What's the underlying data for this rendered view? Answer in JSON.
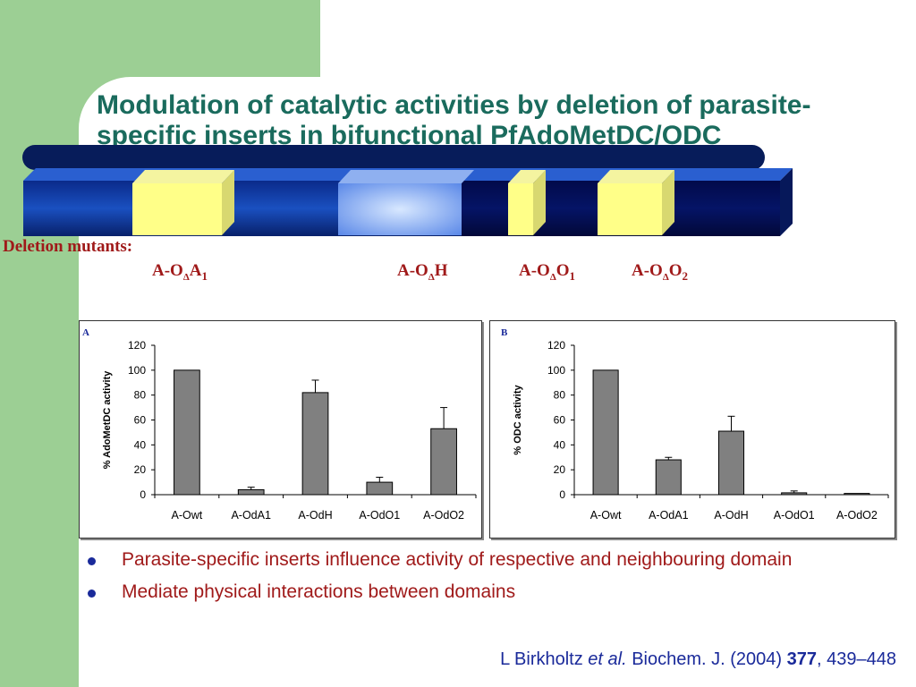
{
  "slide": {
    "title": "Modulation of catalytic activities by deletion of parasite-specific inserts in bifunctional PfAdoMetDC/ODC",
    "deletion_label": "Deletion mutants:",
    "mutants": [
      {
        "prefix": "A-O",
        "delta": "Δ",
        "rest": "A",
        "sub": "1"
      },
      {
        "prefix": "A-O",
        "delta": "Δ",
        "rest": "H",
        "sub": ""
      },
      {
        "prefix": "A-O",
        "delta": "Δ",
        "rest": "O",
        "sub": "1"
      },
      {
        "prefix": "A-O",
        "delta": "Δ",
        "rest": "O",
        "sub": "2"
      }
    ],
    "bullets": [
      "Parasite-specific inserts influence activity of respective and neighbouring domain",
      "Mediate physical interactions between domains"
    ],
    "citation": {
      "author": "L Birkholtz",
      "etal": "et al.",
      "journal": "Biochem. J. (2004)",
      "volume": "377",
      "pages": ", 439–448"
    }
  },
  "colors": {
    "green_panel": "#9ccf94",
    "title": "#1a6b5d",
    "red_text": "#a01a1a",
    "blue_text": "#1a2a9a",
    "bar_fill": "#808080"
  },
  "chart_data": [
    {
      "type": "bar",
      "panel_label": "A",
      "ylabel": "% AdoMetDC activity",
      "xlabel": "",
      "categories": [
        "A-Owt",
        "A-OdA1",
        "A-OdH",
        "A-OdO1",
        "A-OdO2"
      ],
      "values": [
        100,
        4,
        82,
        10,
        53
      ],
      "errors": [
        0,
        2,
        10,
        4,
        17
      ],
      "ylim": [
        0,
        120
      ],
      "yticks": [
        0,
        20,
        40,
        60,
        80,
        100,
        120
      ],
      "grid": false,
      "legend": "none"
    },
    {
      "type": "bar",
      "panel_label": "B",
      "ylabel": "% ODC activity",
      "xlabel": "",
      "categories": [
        "A-Owt",
        "A-OdA1",
        "A-OdH",
        "A-OdO1",
        "A-OdO2"
      ],
      "values": [
        100,
        28,
        51,
        1.5,
        1
      ],
      "errors": [
        0,
        2,
        12,
        1.5,
        0
      ],
      "ylim": [
        0,
        120
      ],
      "yticks": [
        0,
        20,
        40,
        60,
        80,
        100,
        120
      ],
      "grid": false,
      "legend": "none"
    }
  ]
}
